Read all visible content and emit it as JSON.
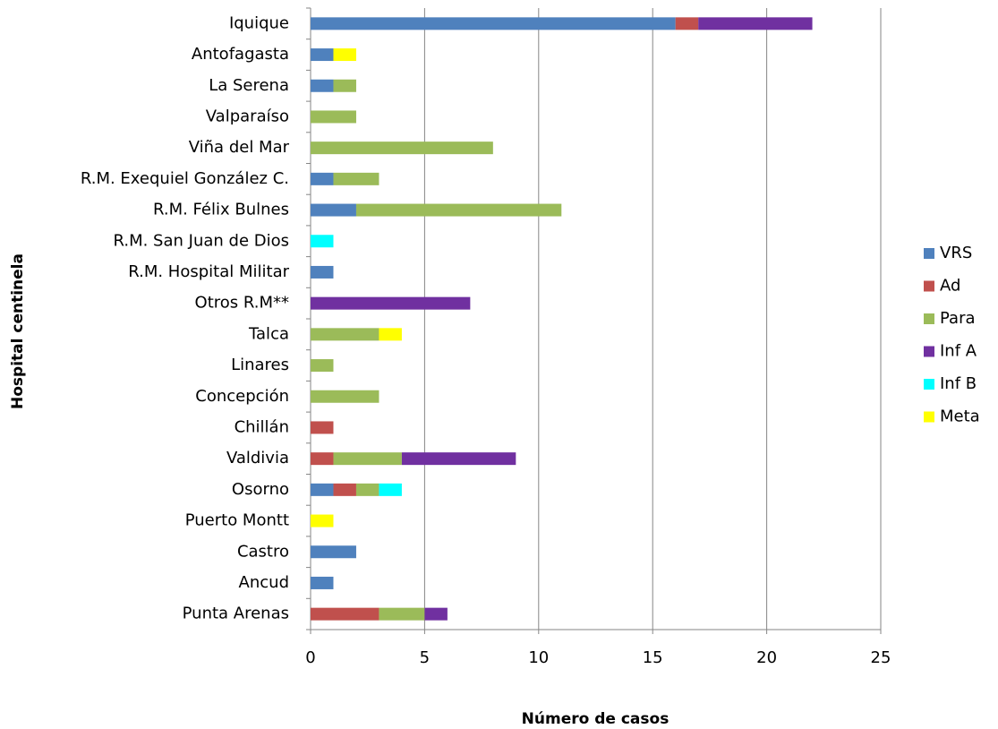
{
  "chart_data": {
    "type": "stacked-barh",
    "xlabel": "Número de casos",
    "ylabel": "Hospital centinela",
    "categories": [
      "Iquique",
      "Antofagasta",
      "La Serena",
      "Valparaíso",
      "Viña del Mar",
      "R.M. Exequiel González C.",
      "R.M. Félix Bulnes",
      "R.M. San Juan de Dios",
      "R.M. Hospital Militar",
      "Otros R.M**",
      "Talca",
      "Linares",
      "Concepción",
      "Chillán",
      "Valdivia",
      "Osorno",
      "Puerto Montt",
      "Castro",
      "Ancud",
      "Punta Arenas"
    ],
    "series": [
      {
        "name": "VRS",
        "color": "#4f81bd",
        "values": [
          16,
          1,
          1,
          0,
          0,
          1,
          2,
          0,
          1,
          0,
          0,
          0,
          0,
          0,
          0,
          1,
          0,
          2,
          1,
          0
        ]
      },
      {
        "name": "Ad",
        "color": "#c0504d",
        "values": [
          1,
          0,
          0,
          0,
          0,
          0,
          0,
          0,
          0,
          0,
          0,
          0,
          0,
          1,
          1,
          1,
          0,
          0,
          0,
          3
        ]
      },
      {
        "name": "Para",
        "color": "#9bbb59",
        "values": [
          0,
          0,
          1,
          2,
          8,
          2,
          9,
          0,
          0,
          0,
          3,
          1,
          3,
          0,
          3,
          1,
          0,
          0,
          0,
          2
        ]
      },
      {
        "name": "Inf A",
        "color": "#7030a0",
        "values": [
          5,
          0,
          0,
          0,
          0,
          0,
          0,
          0,
          0,
          7,
          0,
          0,
          0,
          0,
          5,
          0,
          0,
          0,
          0,
          1
        ]
      },
      {
        "name": "Inf B",
        "color": "#00ffff",
        "values": [
          0,
          0,
          0,
          0,
          0,
          0,
          0,
          1,
          0,
          0,
          0,
          0,
          0,
          0,
          0,
          1,
          0,
          0,
          0,
          0
        ]
      },
      {
        "name": "Meta",
        "color": "#ffff00",
        "values": [
          0,
          1,
          0,
          0,
          0,
          0,
          0,
          0,
          0,
          0,
          1,
          0,
          0,
          0,
          0,
          0,
          1,
          0,
          0,
          0
        ]
      }
    ],
    "xlim": [
      0,
      25
    ],
    "xticks": [
      0,
      5,
      10,
      15,
      20,
      25
    ],
    "grid": true,
    "legend": "right"
  }
}
